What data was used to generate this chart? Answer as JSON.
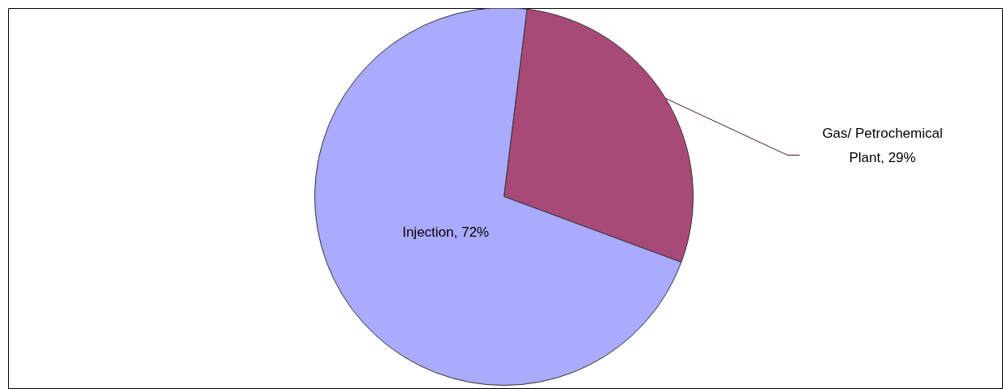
{
  "chart_data": {
    "type": "pie",
    "categories": [
      "Gas/ Petrochemical Plant",
      "Injection"
    ],
    "values": [
      29,
      72
    ],
    "colors": [
      "#a84a78",
      "#aaaaff"
    ],
    "value_labels": [
      "29%",
      "72%"
    ]
  }
}
